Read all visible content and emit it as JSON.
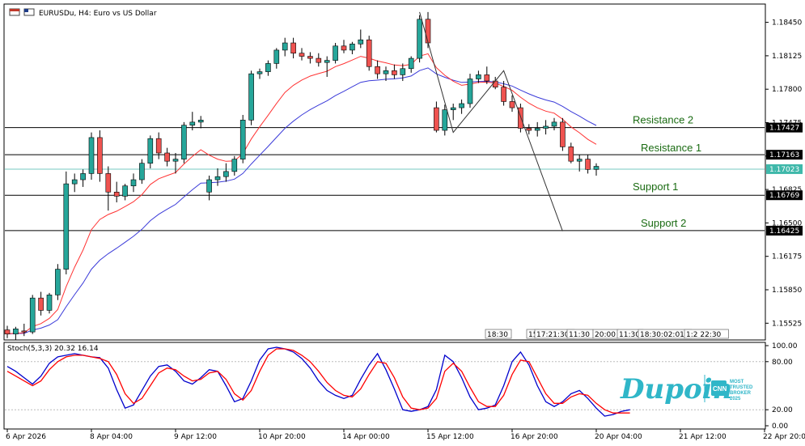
{
  "chart_data": [
    {
      "type": "candlestick",
      "symbol_label": "EURUSDu, H4:  Euro vs US Dollar",
      "ylim": [
        1.1537,
        1.1862
      ],
      "price_ticks": [
        "1.18450",
        "1.18125",
        "1.17800",
        "1.17475",
        "1.17150",
        "1.16825",
        "1.16500",
        "1.16175",
        "1.15850",
        "1.15525"
      ],
      "price_tick_values": [
        1.1845,
        1.18125,
        1.178,
        1.17475,
        1.1715,
        1.16825,
        1.165,
        1.16175,
        1.1585,
        1.15525
      ],
      "x_tick_labels": [
        "6 Apr 2026",
        "8 Apr 04:00",
        "9 Apr 12:00",
        "10 Apr 20:00",
        "14 Apr 00:00",
        "15 Apr 12:00",
        "16 Apr 20:00",
        "20 Apr 04:00",
        "21 Apr 12:00",
        "22 Apr 20:00"
      ],
      "x_tick_bars": [
        0,
        10,
        20,
        30,
        40,
        50,
        60,
        70,
        80,
        90
      ],
      "current_price": "1.17023",
      "current_price_value": 1.17023,
      "levels": [
        {
          "name": "Resistance 2",
          "value": 1.17427,
          "label": "1.17427"
        },
        {
          "name": "Resistance 1",
          "value": 1.17163,
          "label": "1.17163"
        },
        {
          "name": "Support 1",
          "value": 1.16769,
          "label": "1.16769"
        },
        {
          "name": "Support 2",
          "value": 1.16425,
          "label": "1.16425"
        }
      ],
      "session_labels": [
        "18:30",
        "15",
        "17:21:30",
        "11:30",
        "20:00",
        "11:30",
        "18:30:02:01",
        "1:2 22:30"
      ],
      "candles": [
        [
          1.1546,
          1.155,
          1.1538,
          1.1542
        ],
        [
          1.1542,
          1.1549,
          1.1536,
          1.1547
        ],
        [
          1.1545,
          1.1552,
          1.154,
          1.1544
        ],
        [
          1.1544,
          1.158,
          1.1542,
          1.1577
        ],
        [
          1.1577,
          1.1583,
          1.156,
          1.1565
        ],
        [
          1.1565,
          1.1582,
          1.1562,
          1.158
        ],
        [
          1.158,
          1.161,
          1.1575,
          1.1605
        ],
        [
          1.1605,
          1.17,
          1.16,
          1.1688
        ],
        [
          1.1688,
          1.1698,
          1.168,
          1.1692
        ],
        [
          1.1692,
          1.1702,
          1.1685,
          1.1698
        ],
        [
          1.1698,
          1.1738,
          1.1692,
          1.1733
        ],
        [
          1.1733,
          1.174,
          1.169,
          1.1698
        ],
        [
          1.1698,
          1.1705,
          1.1662,
          1.168
        ],
        [
          1.168,
          1.169,
          1.167,
          1.1676
        ],
        [
          1.1676,
          1.1688,
          1.1672,
          1.1686
        ],
        [
          1.1686,
          1.1698,
          1.168,
          1.1692
        ],
        [
          1.1692,
          1.1712,
          1.1688,
          1.1708
        ],
        [
          1.1708,
          1.1735,
          1.1703,
          1.1732
        ],
        [
          1.1732,
          1.1738,
          1.1712,
          1.1718
        ],
        [
          1.1718,
          1.1723,
          1.1705,
          1.171
        ],
        [
          1.171,
          1.1718,
          1.1698,
          1.1712
        ],
        [
          1.1712,
          1.1748,
          1.1708,
          1.1745
        ],
        [
          1.1745,
          1.1758,
          1.174,
          1.1748
        ],
        [
          1.1748,
          1.1754,
          1.1742,
          1.175
        ],
        [
          1.168,
          1.1696,
          1.1672,
          1.1692
        ],
        [
          1.1692,
          1.1703,
          1.1686,
          1.1695
        ],
        [
          1.1695,
          1.1708,
          1.169,
          1.17
        ],
        [
          1.17,
          1.1715,
          1.1696,
          1.1712
        ],
        [
          1.1712,
          1.1755,
          1.1708,
          1.175
        ],
        [
          1.175,
          1.1798,
          1.1745,
          1.1795
        ],
        [
          1.1795,
          1.18,
          1.179,
          1.1797
        ],
        [
          1.1797,
          1.1808,
          1.1793,
          1.1805
        ],
        [
          1.1805,
          1.182,
          1.18,
          1.1818
        ],
        [
          1.1818,
          1.183,
          1.1812,
          1.1825
        ],
        [
          1.1825,
          1.183,
          1.181,
          1.1815
        ],
        [
          1.1815,
          1.182,
          1.1808,
          1.1812
        ],
        [
          1.1812,
          1.1816,
          1.1805,
          1.181
        ],
        [
          1.181,
          1.1815,
          1.1802,
          1.1806
        ],
        [
          1.1806,
          1.1812,
          1.1792,
          1.1808
        ],
        [
          1.1808,
          1.1825,
          1.1805,
          1.1822
        ],
        [
          1.1822,
          1.1828,
          1.1815,
          1.1818
        ],
        [
          1.1818,
          1.1826,
          1.1814,
          1.1824
        ],
        [
          1.1824,
          1.1838,
          1.182,
          1.1828
        ],
        [
          1.1828,
          1.1832,
          1.1798,
          1.1802
        ],
        [
          1.1802,
          1.1808,
          1.179,
          1.1795
        ],
        [
          1.1795,
          1.1802,
          1.1788,
          1.1798
        ],
        [
          1.1798,
          1.1804,
          1.179,
          1.1794
        ],
        [
          1.1794,
          1.1805,
          1.1788,
          1.18
        ],
        [
          1.18,
          1.1812,
          1.1796,
          1.181
        ],
        [
          1.181,
          1.1852,
          1.1806,
          1.1848
        ],
        [
          1.1848,
          1.1855,
          1.182,
          1.1825
        ],
        [
          1.1762,
          1.1768,
          1.1738,
          1.174
        ],
        [
          1.174,
          1.1765,
          1.1735,
          1.176
        ],
        [
          1.176,
          1.1766,
          1.175,
          1.1762
        ],
        [
          1.1762,
          1.177,
          1.1756,
          1.1766
        ],
        [
          1.1766,
          1.1795,
          1.1762,
          1.179
        ],
        [
          1.179,
          1.1798,
          1.1786,
          1.1794
        ],
        [
          1.1794,
          1.1802,
          1.1785,
          1.1788
        ],
        [
          1.1788,
          1.1792,
          1.178,
          1.1782
        ],
        [
          1.1782,
          1.1788,
          1.1764,
          1.1768
        ],
        [
          1.1768,
          1.1774,
          1.1758,
          1.1762
        ],
        [
          1.1762,
          1.1766,
          1.1738,
          1.1742
        ],
        [
          1.1742,
          1.1746,
          1.1736,
          1.174
        ],
        [
          1.174,
          1.1748,
          1.1734,
          1.1742
        ],
        [
          1.1742,
          1.175,
          1.1736,
          1.1744
        ],
        [
          1.1744,
          1.1752,
          1.174,
          1.1748
        ],
        [
          1.1748,
          1.1752,
          1.172,
          1.1724
        ],
        [
          1.1724,
          1.1728,
          1.1708,
          1.171
        ],
        [
          1.171,
          1.1716,
          1.17,
          1.1712
        ],
        [
          1.1712,
          1.1716,
          1.1698,
          1.1702
        ],
        [
          1.1702,
          1.1708,
          1.1696,
          1.1705
        ]
      ],
      "ma_fast_color": "#ff3333",
      "ma_slow_color": "#3b3bd9",
      "bull_color": "#26a69a",
      "bear_color": "#ef5350"
    },
    {
      "type": "line",
      "indicator_label": "Stoch(5,3,3) 20.32 16.14",
      "ylim": [
        0,
        100
      ],
      "y_ticks": [
        "100.00",
        "80.00",
        "20.00",
        "0.00"
      ],
      "y_tick_values": [
        100,
        80,
        20,
        0
      ],
      "series": [
        {
          "color": "#0000cc",
          "values": [
            74,
            68,
            60,
            52,
            62,
            78,
            86,
            88,
            90,
            88,
            86,
            85,
            72,
            45,
            22,
            26,
            44,
            62,
            74,
            76,
            68,
            56,
            52,
            60,
            70,
            68,
            50,
            30,
            34,
            56,
            82,
            96,
            98,
            96,
            92,
            84,
            72,
            56,
            44,
            38,
            34,
            38,
            58,
            76,
            90,
            70,
            46,
            20,
            18,
            20,
            24,
            45,
            88,
            80,
            60,
            36,
            20,
            22,
            26,
            50,
            80,
            92,
            76,
            50,
            30,
            24,
            30,
            40,
            44,
            34,
            22,
            12,
            14,
            18,
            20
          ]
        },
        {
          "color": "#ff0000",
          "values": [
            68,
            62,
            56,
            50,
            56,
            70,
            80,
            86,
            88,
            88,
            86,
            84,
            80,
            64,
            40,
            28,
            34,
            50,
            66,
            72,
            70,
            62,
            56,
            58,
            66,
            68,
            58,
            40,
            32,
            44,
            68,
            88,
            96,
            96,
            94,
            88,
            80,
            68,
            54,
            44,
            38,
            36,
            46,
            64,
            80,
            78,
            60,
            36,
            22,
            20,
            22,
            34,
            68,
            78,
            68,
            48,
            30,
            24,
            24,
            38,
            64,
            82,
            80,
            60,
            40,
            28,
            28,
            36,
            40,
            38,
            28,
            20,
            16,
            16,
            16
          ]
        }
      ]
    }
  ],
  "branding": {
    "logo_text": "Dupoin",
    "badge_lines": [
      "MOST",
      "TRUSTED",
      "BROKER",
      "2025"
    ],
    "cnn_label": "CNN",
    "accent_color": "#2fb6c8"
  }
}
